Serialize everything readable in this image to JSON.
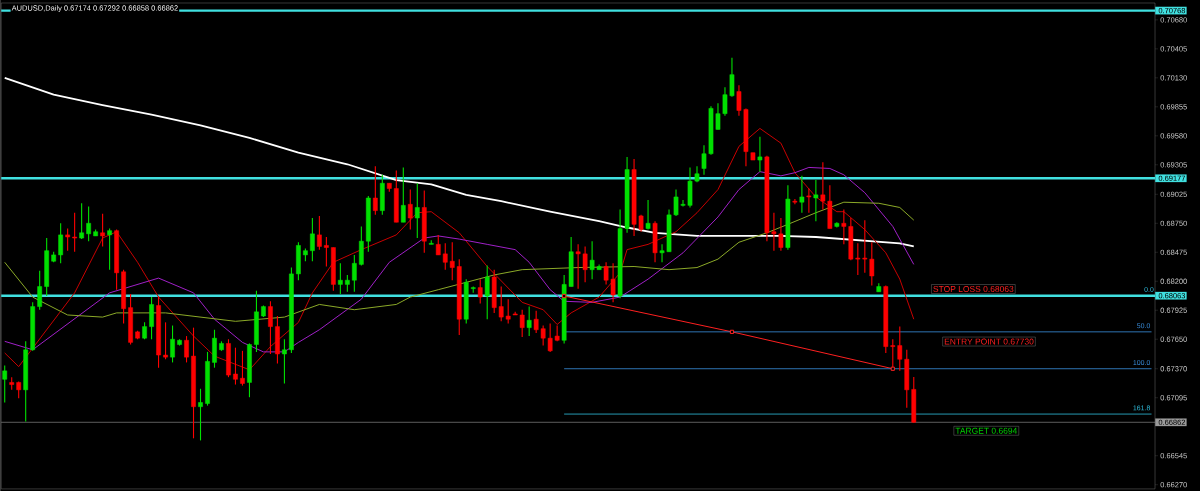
{
  "chart_data": {
    "type": "candlestick",
    "title": "AUDUSD,Daily  0.67174 0.67292 0.66858 0.66862",
    "categories": [
      null,
      null,
      null,
      null,
      null,
      null,
      null,
      null,
      null,
      null,
      null,
      null,
      null,
      null,
      null,
      null,
      null,
      null,
      null,
      null,
      null,
      null,
      null,
      null,
      null,
      null,
      null,
      null,
      null,
      null,
      null,
      null,
      null,
      null,
      null,
      null,
      null,
      null,
      null,
      null,
      null,
      null,
      null,
      null,
      null,
      null,
      null,
      null,
      null,
      null,
      null,
      null,
      null,
      null,
      null,
      null,
      null,
      null,
      null,
      null,
      null,
      null,
      null,
      null,
      null,
      null,
      null,
      null,
      null,
      null,
      null,
      null,
      null,
      null,
      null,
      null,
      null,
      null,
      null,
      null,
      null,
      null,
      null,
      null,
      null,
      null,
      null,
      null,
      null,
      null,
      null,
      null,
      null,
      null,
      null,
      null,
      null,
      null,
      null,
      null,
      null,
      null,
      null,
      null,
      null,
      null,
      null,
      null,
      null,
      null,
      null,
      null,
      null,
      null,
      null,
      null,
      null,
      null,
      null,
      null,
      null,
      null,
      null,
      null,
      null,
      null,
      null,
      null,
      null,
      null,
      null,
      null,
      null,
      null,
      null,
      null,
      null,
      null,
      null,
      null,
      null,
      null,
      null,
      null,
      null,
      null,
      null,
      null,
      null,
      null,
      null,
      null,
      null,
      null,
      null,
      null,
      null,
      null,
      null,
      null,
      null,
      null,
      null,
      null,
      null
    ],
    "ohlc": [
      [
        0.6727,
        0.674,
        0.6705,
        0.6735
      ],
      [
        0.6724,
        0.6729,
        0.6717,
        0.6722
      ],
      [
        0.6724,
        0.6725,
        0.6709,
        0.6717
      ],
      [
        0.6717,
        0.6763,
        0.6687,
        0.6755
      ],
      [
        0.6755,
        0.68,
        0.6754,
        0.6796
      ],
      [
        0.6796,
        0.683,
        0.6793,
        0.6815
      ],
      [
        0.6815,
        0.6861,
        0.6806,
        0.6849
      ],
      [
        0.6839,
        0.6848,
        0.6838,
        0.6845
      ],
      [
        0.6845,
        0.6875,
        0.6837,
        0.6864
      ],
      [
        0.6864,
        0.687,
        0.6849,
        0.6862
      ],
      [
        0.6862,
        0.6885,
        0.6848,
        0.6861
      ],
      [
        0.6861,
        0.6894,
        0.686,
        0.6866
      ],
      [
        0.6865,
        0.6891,
        0.6858,
        0.6875
      ],
      [
        0.6863,
        0.6869,
        0.6863,
        0.6867
      ],
      [
        0.6866,
        0.6884,
        0.6853,
        0.6863
      ],
      [
        0.6864,
        0.687,
        0.6831,
        0.6868
      ],
      [
        0.6868,
        0.6869,
        0.6812,
        0.6828
      ],
      [
        0.6829,
        0.6831,
        0.678,
        0.6794
      ],
      [
        0.6795,
        0.6808,
        0.676,
        0.6762
      ],
      [
        0.6772,
        0.6773,
        0.6765,
        0.6766
      ],
      [
        0.6766,
        0.6781,
        0.6765,
        0.6777
      ],
      [
        0.6777,
        0.6805,
        0.6765,
        0.6798
      ],
      [
        0.6797,
        0.6806,
        0.6738,
        0.675
      ],
      [
        0.675,
        0.6781,
        0.6746,
        0.6748
      ],
      [
        0.6748,
        0.6778,
        0.6743,
        0.6765
      ],
      [
        0.676,
        0.6765,
        0.6759,
        0.6764
      ],
      [
        0.6764,
        0.6768,
        0.6743,
        0.6748
      ],
      [
        0.6749,
        0.6776,
        0.6671,
        0.6701
      ],
      [
        0.6701,
        0.6718,
        0.6669,
        0.6705
      ],
      [
        0.6704,
        0.6753,
        0.6702,
        0.6744
      ],
      [
        0.6743,
        0.6774,
        0.6738,
        0.6766
      ],
      [
        0.6755,
        0.6763,
        0.6754,
        0.6761
      ],
      [
        0.6761,
        0.6765,
        0.6729,
        0.6731
      ],
      [
        0.6732,
        0.6757,
        0.6722,
        0.6727
      ],
      [
        0.6728,
        0.6754,
        0.6721,
        0.6723
      ],
      [
        0.6724,
        0.6761,
        0.671,
        0.676
      ],
      [
        0.676,
        0.6811,
        0.6753,
        0.6791
      ],
      [
        0.6787,
        0.6797,
        0.6786,
        0.6796
      ],
      [
        0.6796,
        0.6801,
        0.6751,
        0.6777
      ],
      [
        0.6777,
        0.6787,
        0.6742,
        0.6751
      ],
      [
        0.6751,
        0.6765,
        0.6723,
        0.6755
      ],
      [
        0.6755,
        0.6833,
        0.6752,
        0.6827
      ],
      [
        0.6827,
        0.6857,
        0.6821,
        0.6854
      ],
      [
        0.6845,
        0.6851,
        0.6839,
        0.6849
      ],
      [
        0.6849,
        0.688,
        0.6839,
        0.6865
      ],
      [
        0.6864,
        0.6882,
        0.685,
        0.6853
      ],
      [
        0.6854,
        0.6862,
        0.6834,
        0.6852
      ],
      [
        0.6852,
        0.6852,
        0.6811,
        0.6817
      ],
      [
        0.6817,
        0.6837,
        0.6808,
        0.6821
      ],
      [
        0.6817,
        0.6826,
        0.681,
        0.6821
      ],
      [
        0.6821,
        0.6845,
        0.681,
        0.6837
      ],
      [
        0.6836,
        0.6872,
        0.6835,
        0.6858
      ],
      [
        0.6858,
        0.6901,
        0.6848,
        0.6899
      ],
      [
        0.6899,
        0.6929,
        0.6883,
        0.6887
      ],
      [
        0.6887,
        0.6921,
        0.6883,
        0.6913
      ],
      [
        0.6913,
        0.6913,
        0.6905,
        0.6908
      ],
      [
        0.6908,
        0.6925,
        0.6876,
        0.6876
      ],
      [
        0.6876,
        0.6928,
        0.6876,
        0.6892
      ],
      [
        0.6893,
        0.6907,
        0.6869,
        0.688
      ],
      [
        0.688,
        0.6913,
        0.6861,
        0.689
      ],
      [
        0.689,
        0.6906,
        0.6847,
        0.6858
      ],
      [
        0.6855,
        0.6859,
        0.6855,
        0.6856
      ],
      [
        0.6855,
        0.6864,
        0.6845,
        0.6845
      ],
      [
        0.6846,
        0.6856,
        0.6831,
        0.6838
      ],
      [
        0.6839,
        0.6857,
        0.6821,
        0.6833
      ],
      [
        0.6834,
        0.6841,
        0.6769,
        0.6784
      ],
      [
        0.6784,
        0.6822,
        0.678,
        0.6819
      ],
      [
        0.6813,
        0.6815,
        0.6809,
        0.6814
      ],
      [
        0.6814,
        0.6822,
        0.6799,
        0.6805
      ],
      [
        0.6806,
        0.6835,
        0.6784,
        0.6824
      ],
      [
        0.6824,
        0.6831,
        0.679,
        0.6795
      ],
      [
        0.6796,
        0.6815,
        0.6782,
        0.6786
      ],
      [
        0.6787,
        0.6803,
        0.678,
        0.6784
      ],
      [
        0.6789,
        0.6791,
        0.6788,
        0.6788
      ],
      [
        0.6788,
        0.6793,
        0.6767,
        0.6776
      ],
      [
        0.6776,
        0.6796,
        0.6768,
        0.6783
      ],
      [
        0.6784,
        0.6792,
        0.6771,
        0.6774
      ],
      [
        0.6775,
        0.6778,
        0.6759,
        0.6766
      ],
      [
        0.6766,
        0.678,
        0.6753,
        0.6754
      ],
      [
        0.6768,
        0.6778,
        0.6763,
        0.6764
      ],
      [
        0.6764,
        0.6826,
        0.6761,
        0.6817
      ],
      [
        0.6815,
        0.6862,
        0.6815,
        0.6848
      ],
      [
        0.6848,
        0.6855,
        0.6813,
        0.6846
      ],
      [
        0.6846,
        0.6853,
        0.6819,
        0.6831
      ],
      [
        0.6831,
        0.6858,
        0.6822,
        0.684
      ],
      [
        0.6831,
        0.6836,
        0.6831,
        0.6834
      ],
      [
        0.6834,
        0.6838,
        0.6817,
        0.6821
      ],
      [
        0.6822,
        0.6837,
        0.68,
        0.6807
      ],
      [
        0.6806,
        0.6888,
        0.6804,
        0.687
      ],
      [
        0.687,
        0.6938,
        0.6866,
        0.6926
      ],
      [
        0.6926,
        0.6936,
        0.6863,
        0.6874
      ],
      [
        0.6882,
        0.6883,
        0.6867,
        0.6869
      ],
      [
        0.687,
        0.6897,
        0.6869,
        0.6875
      ],
      [
        0.6875,
        0.6877,
        0.6838,
        0.6847
      ],
      [
        0.6847,
        0.6855,
        0.6838,
        0.6849
      ],
      [
        0.6848,
        0.6888,
        0.6848,
        0.6883
      ],
      [
        0.6883,
        0.6907,
        0.6882,
        0.69
      ],
      [
        0.6892,
        0.6897,
        0.6891,
        0.6893
      ],
      [
        0.6892,
        0.6928,
        0.689,
        0.6915
      ],
      [
        0.6915,
        0.6929,
        0.6914,
        0.6922
      ],
      [
        0.6927,
        0.6949,
        0.6921,
        0.6941
      ],
      [
        0.6941,
        0.6986,
        0.694,
        0.6984
      ],
      [
        0.6964,
        0.6989,
        0.6964,
        0.6979
      ],
      [
        0.6979,
        0.7004,
        0.6977,
        0.6997
      ],
      [
        0.6996,
        0.7032,
        0.6995,
        0.7016
      ],
      [
        0.7,
        0.7006,
        0.6977,
        0.6982
      ],
      [
        0.6983,
        0.6984,
        0.6929,
        0.6943
      ],
      [
        0.6942,
        0.6942,
        0.6935,
        0.6935
      ],
      [
        0.6935,
        0.6957,
        0.6924,
        0.6938
      ],
      [
        0.6938,
        0.6939,
        0.6858,
        0.6866
      ],
      [
        0.6867,
        0.6885,
        0.6849,
        0.6865
      ],
      [
        0.6865,
        0.688,
        0.6849,
        0.6852
      ],
      [
        0.6852,
        0.6911,
        0.685,
        0.6898
      ],
      [
        0.6896,
        0.6898,
        0.6893,
        0.6895
      ],
      [
        0.6895,
        0.692,
        0.6885,
        0.69
      ],
      [
        0.6901,
        0.6908,
        0.6885,
        0.69
      ],
      [
        0.6899,
        0.6916,
        0.6877,
        0.6902
      ],
      [
        0.6902,
        0.6933,
        0.6888,
        0.6896
      ],
      [
        0.6896,
        0.6911,
        0.687,
        0.687
      ],
      [
        0.6872,
        0.6876,
        0.6871,
        0.6875
      ],
      [
        0.6875,
        0.6888,
        0.6855,
        0.6872
      ],
      [
        0.6872,
        0.688,
        0.684,
        0.6841
      ],
      [
        0.6842,
        0.6856,
        0.6826,
        0.6841
      ],
      [
        0.6842,
        0.6878,
        0.6828,
        0.6841
      ],
      [
        0.6841,
        0.6857,
        0.6816,
        0.6825
      ],
      [
        0.681,
        0.6818,
        0.681,
        0.6815
      ],
      [
        0.6815,
        0.6816,
        0.6752,
        0.6758
      ],
      [
        0.6759,
        0.6765,
        0.6736,
        0.6758
      ],
      [
        0.6759,
        0.6777,
        0.6735,
        0.6746
      ],
      [
        0.6746,
        0.6755,
        0.67,
        0.6717
      ],
      [
        0.67174,
        0.67292,
        0.66858,
        0.66862
      ],
      null,
      null,
      null,
      null,
      null,
      null,
      null,
      null,
      null,
      null,
      null,
      null,
      null,
      null,
      null,
      null,
      null,
      null,
      null,
      null,
      null,
      null,
      null,
      null,
      null,
      null,
      null,
      null,
      null,
      null,
      null,
      null,
      null,
      null
    ],
    "series": [
      {
        "type": "line",
        "color": "#ffffff",
        "values": [
          0.7013,
          null,
          null,
          null,
          null,
          null,
          null,
          0.6997,
          null,
          null,
          null,
          null,
          null,
          null,
          0.6987,
          null,
          null,
          null,
          null,
          null,
          null,
          0.6978,
          null,
          null,
          null,
          null,
          null,
          null,
          0.6968,
          null,
          null,
          null,
          null,
          null,
          null,
          0.6956,
          null,
          null,
          null,
          null,
          null,
          null,
          0.6942,
          null,
          null,
          null,
          null,
          null,
          null,
          0.6931,
          null,
          null,
          null,
          null,
          null,
          null,
          0.6916,
          null,
          null,
          null,
          null,
          0.6912,
          null,
          null,
          null,
          null,
          0.6902,
          null,
          null,
          null,
          null,
          0.6896,
          null,
          null,
          null,
          null,
          null,
          null,
          0.6886,
          null,
          null,
          null,
          null,
          null,
          null,
          0.6877,
          null,
          null,
          null,
          0.6871,
          null,
          null,
          null,
          0.6866,
          null,
          null,
          null,
          null,
          null,
          0.6863,
          null,
          null,
          null,
          null,
          null,
          0.6863,
          null,
          null,
          null,
          null,
          null,
          0.6863,
          null,
          null,
          null,
          null,
          0.6862,
          null,
          null,
          null,
          null,
          null,
          0.6859,
          null,
          null,
          null,
          null,
          null,
          0.6856,
          null,
          0.6853,
          null,
          null,
          null,
          null,
          null,
          null,
          null,
          null,
          null,
          null,
          null,
          null,
          null,
          null,
          null,
          null,
          null,
          null,
          null,
          null,
          null,
          null,
          null,
          null,
          null,
          null,
          null,
          null,
          null,
          null,
          null,
          null,
          null,
          null
        ]
      },
      {
        "type": "line",
        "color": "#c80000",
        "values": [
          0.6752,
          null,
          0.6739,
          null,
          null,
          null,
          null,
          null,
          null,
          null,
          0.6809,
          null,
          null,
          null,
          0.6861,
          null,
          0.6867,
          null,
          null,
          0.6838,
          null,
          null,
          0.6805,
          null,
          null,
          null,
          null,
          0.6768,
          null,
          null,
          0.6749,
          null,
          null,
          null,
          null,
          0.6736,
          null,
          null,
          0.6758,
          null,
          null,
          null,
          0.6781,
          null,
          0.6809,
          null,
          null,
          0.6838,
          null,
          null,
          null,
          0.685,
          null,
          null,
          null,
          null,
          0.6864,
          null,
          null,
          0.6885,
          null,
          0.6886,
          null,
          null,
          null,
          0.6866,
          null,
          null,
          null,
          0.6834,
          null,
          null,
          null,
          null,
          0.68,
          null,
          null,
          0.6793,
          null,
          0.6779,
          null,
          0.679,
          null,
          null,
          null,
          0.6805,
          null,
          null,
          0.6828,
          0.685,
          null,
          null,
          0.6855,
          null,
          null,
          null,
          0.6867,
          null,
          null,
          0.6885,
          null,
          null,
          0.6907,
          null,
          null,
          0.6948,
          null,
          null,
          0.6965,
          null,
          null,
          0.6951,
          null,
          0.6923,
          null,
          null,
          0.69,
          null,
          null,
          0.6886,
          0.6886,
          null,
          null,
          0.6869,
          null,
          null,
          0.6847,
          null,
          0.6822,
          null,
          0.6784,
          null,
          null,
          null,
          null,
          null,
          null,
          null,
          null,
          null,
          null,
          null,
          null,
          null,
          null,
          null,
          null,
          null,
          null,
          null,
          null,
          null,
          null,
          null,
          null,
          null,
          null,
          null,
          null,
          null,
          null,
          null,
          null,
          null,
          null
        ]
      },
      {
        "type": "line",
        "color": "#a020c8",
        "values": [
          0.6763,
          null,
          null,
          null,
          0.6755,
          null,
          null,
          null,
          null,
          null,
          null,
          null,
          null,
          null,
          null,
          0.6809,
          null,
          null,
          null,
          null,
          null,
          null,
          0.6823,
          null,
          null,
          null,
          null,
          0.6809,
          null,
          null,
          0.6784,
          null,
          null,
          null,
          0.6762,
          null,
          null,
          0.6753,
          null,
          null,
          0.6753,
          null,
          0.6762,
          null,
          null,
          0.6774,
          null,
          null,
          null,
          null,
          null,
          0.6803,
          null,
          null,
          null,
          0.6838,
          null,
          null,
          null,
          null,
          0.6861,
          null,
          0.6863,
          null,
          null,
          0.686,
          null,
          null,
          null,
          0.6855,
          null,
          null,
          null,
          0.685,
          null,
          0.6838,
          null,
          null,
          0.6812,
          null,
          0.6801,
          null,
          null,
          null,
          0.68,
          null,
          null,
          null,
          0.6805,
          null,
          null,
          null,
          0.6822,
          null,
          null,
          null,
          null,
          0.6847,
          null,
          null,
          null,
          null,
          0.6881,
          null,
          null,
          0.6907,
          null,
          null,
          0.6924,
          null,
          null,
          0.692,
          null,
          0.6923,
          null,
          0.6928,
          null,
          null,
          0.6927,
          null,
          0.6921,
          null,
          null,
          0.6904,
          null,
          null,
          null,
          0.6872,
          null,
          null,
          0.6836,
          null,
          null,
          null,
          null,
          null,
          null,
          null,
          null,
          null,
          null,
          null,
          null,
          null,
          null,
          null,
          null,
          null,
          null,
          null,
          null,
          null,
          null,
          null,
          null,
          null,
          null,
          null,
          null,
          null,
          null,
          null,
          null,
          null,
          null
        ]
      },
      {
        "type": "line",
        "color": "#8caa28",
        "values": [
          0.6838,
          null,
          null,
          null,
          0.6805,
          null,
          null,
          null,
          null,
          0.6788,
          null,
          null,
          null,
          null,
          0.6786,
          null,
          0.679,
          null,
          null,
          null,
          null,
          null,
          null,
          0.679,
          null,
          null,
          null,
          null,
          null,
          null,
          null,
          null,
          null,
          0.6782,
          null,
          null,
          null,
          null,
          null,
          null,
          0.6786,
          null,
          null,
          null,
          null,
          0.6798,
          null,
          null,
          null,
          null,
          0.6793,
          null,
          null,
          null,
          null,
          null,
          0.6798,
          null,
          0.6805,
          null,
          null,
          null,
          0.6812,
          null,
          null,
          null,
          0.6819,
          null,
          null,
          null,
          0.6826,
          null,
          null,
          null,
          0.6831,
          null,
          null,
          null,
          null,
          null,
          null,
          null,
          0.6833,
          null,
          null,
          null,
          null,
          null,
          null,
          null,
          0.6834,
          null,
          null,
          null,
          null,
          0.6831,
          null,
          null,
          null,
          0.6833,
          null,
          null,
          0.6841,
          null,
          null,
          0.6857,
          null,
          null,
          null,
          0.6866,
          null,
          null,
          0.6874,
          null,
          null,
          null,
          0.6885,
          null,
          null,
          null,
          0.6895,
          null,
          null,
          null,
          null,
          0.6894,
          null,
          null,
          0.689,
          null,
          0.6878,
          null,
          null,
          null,
          null,
          null,
          null,
          null,
          null,
          null,
          null,
          null,
          null,
          null,
          null,
          null,
          null,
          null,
          null,
          null,
          null,
          null,
          null,
          null,
          null,
          null,
          null,
          null,
          null,
          null,
          null,
          null,
          null,
          null,
          null
        ]
      },
      {
        "type": "line",
        "color": "#ff2020",
        "marker": "square",
        "values": [
          null,
          null,
          null,
          null,
          null,
          null,
          null,
          null,
          null,
          null,
          null,
          null,
          null,
          null,
          null,
          null,
          null,
          null,
          null,
          null,
          null,
          null,
          null,
          null,
          null,
          null,
          null,
          null,
          null,
          null,
          null,
          null,
          null,
          null,
          null,
          null,
          null,
          null,
          null,
          null,
          null,
          null,
          null,
          null,
          null,
          null,
          null,
          null,
          null,
          null,
          null,
          null,
          null,
          null,
          null,
          null,
          null,
          null,
          null,
          null,
          null,
          null,
          null,
          null,
          null,
          null,
          null,
          null,
          null,
          null,
          null,
          null,
          null,
          null,
          null,
          null,
          null,
          null,
          null,
          null,
          0.6806,
          null,
          null,
          null,
          null,
          null,
          null,
          null,
          null,
          null,
          null,
          null,
          null,
          null,
          null,
          null,
          null,
          null,
          null,
          null,
          null,
          null,
          null,
          null,
          0.6772,
          null,
          null,
          null,
          null,
          null,
          null,
          null,
          null,
          null,
          null,
          null,
          null,
          null,
          null,
          null,
          null,
          null,
          null,
          null,
          null,
          null,
          null,
          0.6737,
          null,
          null,
          null,
          null,
          null,
          null,
          null,
          null,
          null,
          null,
          null,
          null,
          null,
          null,
          null,
          null,
          null,
          null,
          null,
          null,
          null,
          null,
          null,
          null,
          null,
          null,
          null,
          null,
          null,
          null,
          null,
          null,
          null,
          null,
          null,
          null,
          null
        ]
      },
      {
        "type": "line",
        "name": "50.0",
        "color": "#3a90e0",
        "values": [
          null,
          null,
          null,
          null,
          null,
          null,
          null,
          null,
          null,
          null,
          null,
          null,
          null,
          null,
          null,
          null,
          null,
          null,
          null,
          null,
          null,
          null,
          null,
          null,
          null,
          null,
          null,
          null,
          null,
          null,
          null,
          null,
          null,
          null,
          null,
          null,
          null,
          null,
          null,
          null,
          null,
          null,
          null,
          null,
          null,
          null,
          null,
          null,
          null,
          null,
          null,
          null,
          null,
          null,
          null,
          null,
          null,
          null,
          null,
          null,
          null,
          null,
          null,
          null,
          null,
          null,
          null,
          null,
          null,
          null,
          null,
          null,
          null,
          null,
          null,
          null,
          null,
          null,
          null,
          null,
          0.6772,
          null,
          null,
          null,
          null,
          null,
          null,
          null,
          null,
          null,
          null,
          null,
          null,
          null,
          null,
          null,
          null,
          null,
          null,
          null,
          null,
          null,
          null,
          null,
          null,
          null,
          null,
          null,
          null,
          null,
          null,
          null,
          null,
          null,
          null,
          null,
          null,
          null,
          null,
          null,
          null,
          null,
          null,
          null,
          null,
          null,
          null,
          null,
          null,
          null,
          null,
          null,
          null,
          null,
          null,
          null,
          null,
          null,
          null,
          null,
          null,
          null,
          null,
          null,
          null,
          null,
          null,
          null,
          null,
          null,
          null,
          null,
          null,
          null,
          null,
          null,
          null,
          null,
          null,
          null,
          null,
          null,
          null,
          null,
          0.6772
        ]
      },
      {
        "type": "line",
        "name": "100.0",
        "color": "#3a90e0",
        "values": [
          null,
          null,
          null,
          null,
          null,
          null,
          null,
          null,
          null,
          null,
          null,
          null,
          null,
          null,
          null,
          null,
          null,
          null,
          null,
          null,
          null,
          null,
          null,
          null,
          null,
          null,
          null,
          null,
          null,
          null,
          null,
          null,
          null,
          null,
          null,
          null,
          null,
          null,
          null,
          null,
          null,
          null,
          null,
          null,
          null,
          null,
          null,
          null,
          null,
          null,
          null,
          null,
          null,
          null,
          null,
          null,
          null,
          null,
          null,
          null,
          null,
          null,
          null,
          null,
          null,
          null,
          null,
          null,
          null,
          null,
          null,
          null,
          null,
          null,
          null,
          null,
          null,
          null,
          null,
          null,
          0.6737,
          null,
          null,
          null,
          null,
          null,
          null,
          null,
          null,
          null,
          null,
          null,
          null,
          null,
          null,
          null,
          null,
          null,
          null,
          null,
          null,
          null,
          null,
          null,
          null,
          null,
          null,
          null,
          null,
          null,
          null,
          null,
          null,
          null,
          null,
          null,
          null,
          null,
          null,
          null,
          null,
          null,
          null,
          null,
          null,
          null,
          null,
          null,
          null,
          null,
          null,
          null,
          null,
          null,
          null,
          null,
          null,
          null,
          null,
          null,
          null,
          null,
          null,
          null,
          null,
          null,
          null,
          null,
          null,
          null,
          null,
          null,
          null,
          null,
          null,
          null,
          null,
          null,
          null,
          null,
          null,
          null,
          null,
          null,
          0.6737
        ]
      },
      {
        "type": "line",
        "name": "161.8",
        "color": "#30c0e0",
        "values": [
          null,
          null,
          null,
          null,
          null,
          null,
          null,
          null,
          null,
          null,
          null,
          null,
          null,
          null,
          null,
          null,
          null,
          null,
          null,
          null,
          null,
          null,
          null,
          null,
          null,
          null,
          null,
          null,
          null,
          null,
          null,
          null,
          null,
          null,
          null,
          null,
          null,
          null,
          null,
          null,
          null,
          null,
          null,
          null,
          null,
          null,
          null,
          null,
          null,
          null,
          null,
          null,
          null,
          null,
          null,
          null,
          null,
          null,
          null,
          null,
          null,
          null,
          null,
          null,
          null,
          null,
          null,
          null,
          null,
          null,
          null,
          null,
          null,
          null,
          null,
          null,
          null,
          null,
          null,
          null,
          0.6694,
          null,
          null,
          null,
          null,
          null,
          null,
          null,
          null,
          null,
          null,
          null,
          null,
          null,
          null,
          null,
          null,
          null,
          null,
          null,
          null,
          null,
          null,
          null,
          null,
          null,
          null,
          null,
          null,
          null,
          null,
          null,
          null,
          null,
          null,
          null,
          null,
          null,
          null,
          null,
          null,
          null,
          null,
          null,
          null,
          null,
          null,
          null,
          null,
          null,
          null,
          null,
          null,
          null,
          null,
          null,
          null,
          null,
          null,
          null,
          null,
          null,
          null,
          null,
          null,
          null,
          null,
          null,
          null,
          null,
          null,
          null,
          null,
          null,
          null,
          null,
          null,
          null,
          null,
          null,
          null,
          null,
          null,
          null,
          0.6694
        ]
      }
    ],
    "ylim": [
      0.6623,
      0.7084
    ],
    "yticks": [
      {
        "value": 0.7068,
        "label": "0.70680"
      },
      {
        "value": 0.70405,
        "label": "0.70405"
      },
      {
        "value": 0.7013,
        "label": "0.70130"
      },
      {
        "value": 0.69855,
        "label": "0.69855"
      },
      {
        "value": 0.6958,
        "label": "0.69580"
      },
      {
        "value": 0.69305,
        "label": "0.69305"
      },
      {
        "value": 0.69025,
        "label": "0.69025"
      },
      {
        "value": 0.6875,
        "label": "0.68750"
      },
      {
        "value": 0.68475,
        "label": "0.68475"
      },
      {
        "value": 0.682,
        "label": "0.68200"
      },
      {
        "value": 0.67925,
        "label": "0.67925"
      },
      {
        "value": 0.6765,
        "label": "0.67650"
      },
      {
        "value": 0.6737,
        "label": "0.67370"
      },
      {
        "value": 0.67095,
        "label": "0.67095"
      },
      {
        "value": 0.66545,
        "label": "0.66545"
      },
      {
        "value": 0.6627,
        "label": "0.66270"
      }
    ],
    "ref_lines": [
      {
        "axis": "y",
        "value": 0.70768,
        "label": "0.70768",
        "color": "#40e0e0"
      },
      {
        "axis": "y",
        "value": 0.69177,
        "label": "0.69177",
        "color": "#40e0e0"
      },
      {
        "axis": "y",
        "value": 0.68063,
        "label": "0.68063",
        "color": "#40e0e0"
      },
      {
        "axis": "y",
        "value": 0.66862,
        "label": "0.66862",
        "color": "#9a9a9a"
      }
    ],
    "annotations": [
      {
        "text": "STOP LOSS 0.68063",
        "y": 0.68063
      },
      {
        "text": "ENTRY POINT 0.67730",
        "y": 0.6772
      },
      {
        "text": "TARGET  0.6694",
        "y": 0.6694
      },
      {
        "text": "0.0",
        "y": 0.68063
      }
    ],
    "tick_labels": "y"
  }
}
